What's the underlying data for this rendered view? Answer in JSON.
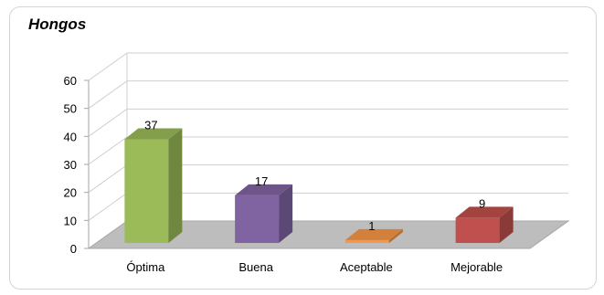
{
  "chart_data": {
    "type": "bar",
    "title": "Hongos",
    "categories": [
      "Óptima",
      "Buena",
      "Aceptable",
      "Mejorable"
    ],
    "values": [
      37,
      17,
      1,
      9
    ],
    "data_labels": [
      "37",
      "17",
      "1",
      "9"
    ],
    "ylim": [
      0,
      60
    ],
    "yticks": [
      "0",
      "10",
      "20",
      "30",
      "40",
      "50",
      "60"
    ],
    "grid": true,
    "legend": "none",
    "style": "3d-column",
    "colors": [
      "#9bbb59",
      "#8064a2",
      "#f79646",
      "#c0504d"
    ],
    "floor_color": "#bdbdbd"
  }
}
